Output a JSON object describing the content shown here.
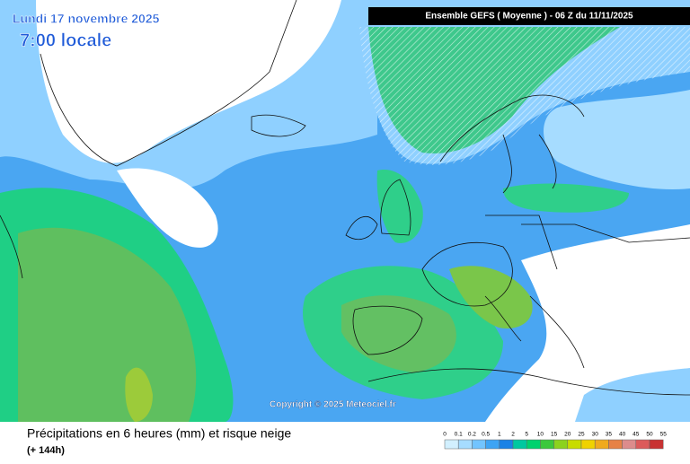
{
  "header": {
    "date": "Lundi 17 novembre 2025",
    "time": "7:00 locale",
    "model": "Ensemble GEFS  ( Moyenne )  -  06 Z du 11/11/2025"
  },
  "copyright": "Copyright © 2025 Meteociel.fr",
  "footer": {
    "title": "Précipitations en 6 heures (mm) et risque neige",
    "lead": "(+ 144h)"
  },
  "legend": {
    "labels": [
      0,
      0.1,
      0.2,
      0.5,
      1,
      2,
      5,
      10,
      15,
      20,
      25,
      30,
      35,
      40,
      45,
      50,
      55
    ],
    "colors": [
      "#ffffff",
      "#d2f0ff",
      "#a6dcff",
      "#72c4ff",
      "#3ea4f4",
      "#1a82e6",
      "#00c8a0",
      "#00d26e",
      "#3cc83c",
      "#8cd21e",
      "#c8dc00",
      "#f0d200",
      "#f0aa1e",
      "#e68246",
      "#dc8c8c",
      "#dc5a5a",
      "#c83232"
    ]
  }
}
